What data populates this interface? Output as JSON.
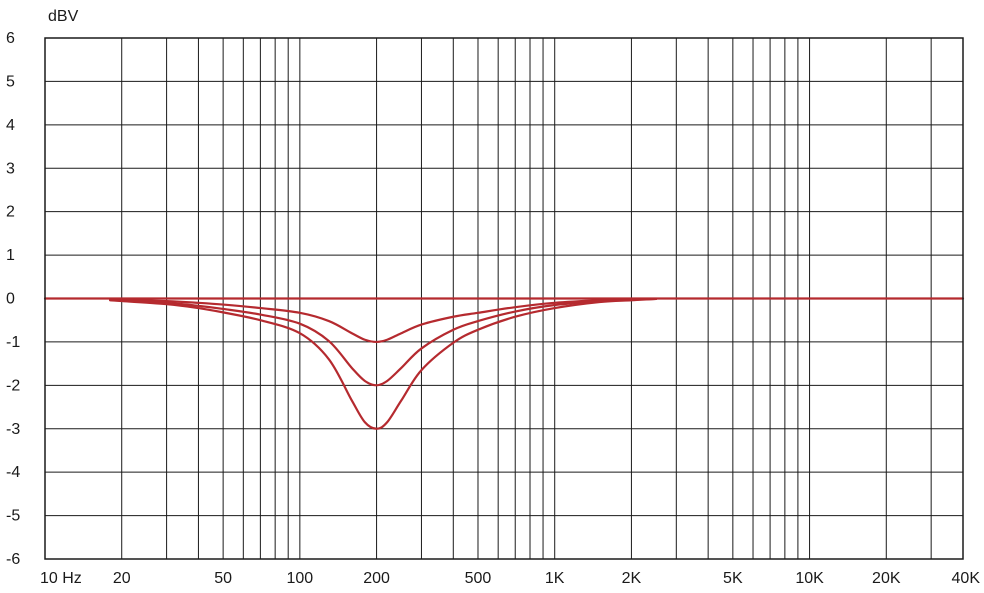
{
  "chart_data": {
    "type": "line",
    "title": "",
    "ylabel": "dBV",
    "xlabel": "",
    "x_scale": "log",
    "xlim": [
      10,
      40000
    ],
    "ylim": [
      -6,
      6
    ],
    "grid": true,
    "legend": "none",
    "line_color": "#b52a2f",
    "y_ticks": [
      {
        "value": 6,
        "label": "6"
      },
      {
        "value": 5,
        "label": "5"
      },
      {
        "value": 4,
        "label": "4"
      },
      {
        "value": 3,
        "label": "3"
      },
      {
        "value": 2,
        "label": "2"
      },
      {
        "value": 1,
        "label": "1"
      },
      {
        "value": 0,
        "label": "0"
      },
      {
        "value": -1,
        "label": "-1"
      },
      {
        "value": -2,
        "label": "-2"
      },
      {
        "value": -3,
        "label": "-3"
      },
      {
        "value": -4,
        "label": "-4"
      },
      {
        "value": -5,
        "label": "-5"
      },
      {
        "value": -6,
        "label": "-6"
      }
    ],
    "x_ticks": [
      {
        "value": 10,
        "label": "10 Hz"
      },
      {
        "value": 20,
        "label": "20"
      },
      {
        "value": 50,
        "label": "50"
      },
      {
        "value": 100,
        "label": "100"
      },
      {
        "value": 200,
        "label": "200"
      },
      {
        "value": 500,
        "label": "500"
      },
      {
        "value": 1000,
        "label": "1K"
      },
      {
        "value": 2000,
        "label": "2K"
      },
      {
        "value": 5000,
        "label": "5K"
      },
      {
        "value": 10000,
        "label": "10K"
      },
      {
        "value": 20000,
        "label": "20K"
      },
      {
        "value": 40000,
        "label": "40K"
      }
    ],
    "x_gridlines": [
      20,
      30,
      40,
      50,
      60,
      70,
      80,
      90,
      100,
      200,
      300,
      400,
      500,
      600,
      700,
      800,
      900,
      1000,
      2000,
      3000,
      4000,
      5000,
      6000,
      7000,
      8000,
      9000,
      10000,
      20000,
      30000
    ],
    "series": [
      {
        "x": [
          10,
          20,
          30,
          50,
          70,
          100,
          130,
          160,
          180,
          200,
          220,
          250,
          300,
          400,
          500,
          700,
          1000,
          1500,
          2000,
          2500,
          5000,
          10000,
          20000,
          40000
        ],
        "y": [
          0,
          0,
          0,
          0,
          0,
          0,
          0,
          0,
          0,
          0,
          0,
          0,
          0,
          0,
          0,
          0,
          0,
          0,
          0,
          0,
          0,
          0,
          0,
          0
        ]
      },
      {
        "x": [
          18,
          30,
          40,
          50,
          70,
          100,
          130,
          160,
          180,
          200,
          220,
          250,
          300,
          400,
          500,
          700,
          1000,
          1500,
          2000,
          2500
        ],
        "y": [
          -0.02,
          -0.06,
          -0.1,
          -0.14,
          -0.22,
          -0.33,
          -0.52,
          -0.8,
          -0.95,
          -1.0,
          -0.95,
          -0.8,
          -0.6,
          -0.42,
          -0.33,
          -0.2,
          -0.1,
          -0.04,
          -0.02,
          -0.01
        ]
      },
      {
        "x": [
          18,
          30,
          40,
          50,
          70,
          100,
          130,
          160,
          180,
          200,
          220,
          250,
          300,
          400,
          500,
          700,
          1000,
          1500,
          2000,
          2500
        ],
        "y": [
          -0.03,
          -0.1,
          -0.17,
          -0.24,
          -0.37,
          -0.58,
          -0.98,
          -1.6,
          -1.9,
          -2.0,
          -1.9,
          -1.6,
          -1.15,
          -0.72,
          -0.52,
          -0.3,
          -0.15,
          -0.06,
          -0.03,
          -0.01
        ]
      },
      {
        "x": [
          18,
          30,
          40,
          50,
          70,
          100,
          130,
          160,
          180,
          200,
          220,
          250,
          300,
          400,
          500,
          700,
          1000,
          1500,
          2000,
          2500
        ],
        "y": [
          -0.04,
          -0.13,
          -0.22,
          -0.32,
          -0.5,
          -0.8,
          -1.4,
          -2.35,
          -2.85,
          -3.0,
          -2.85,
          -2.35,
          -1.65,
          -1.02,
          -0.72,
          -0.42,
          -0.22,
          -0.08,
          -0.04,
          -0.01
        ]
      }
    ]
  }
}
